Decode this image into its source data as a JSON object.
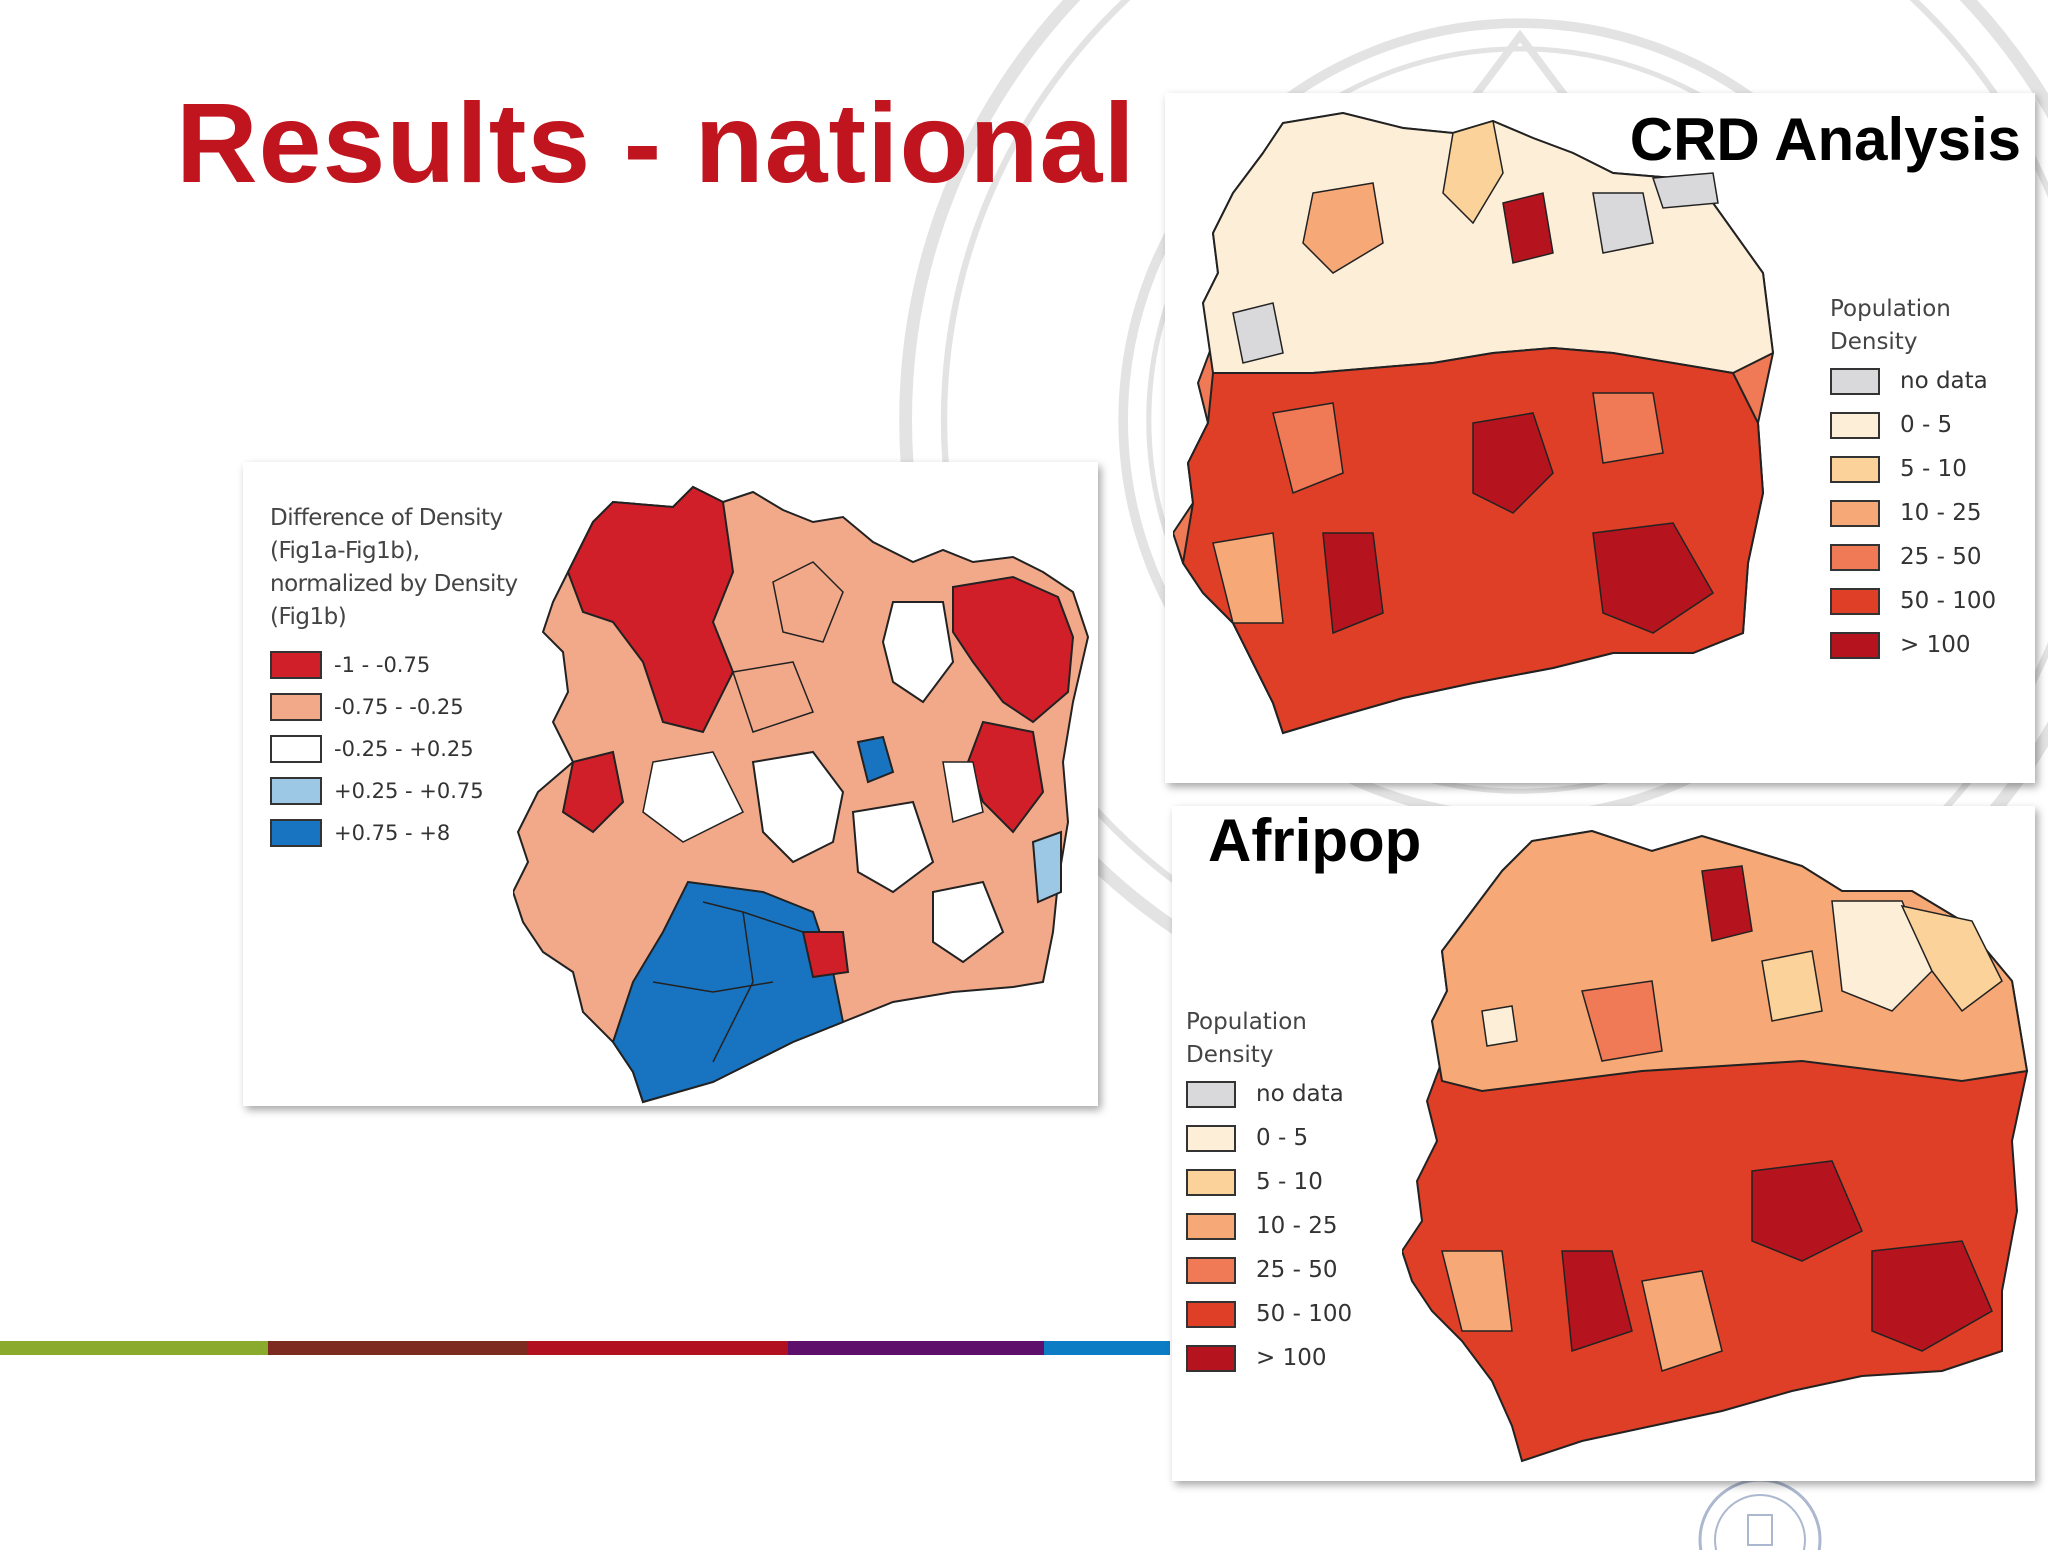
{
  "slide": {
    "title": "Results - national",
    "accent_bar_colors": [
      "#8aaa2d",
      "#7d2a20",
      "#b0101f",
      "#5e0e6b",
      "#0c7dc4"
    ]
  },
  "diff_map": {
    "legend_title": "Difference of Density (Fig1a-Fig1b), normalized by Density (Fig1b)",
    "legend": [
      {
        "label": "-1 - -0.75",
        "color": "#d11f2a"
      },
      {
        "label": "-0.75 - -0.25",
        "color": "#f2a98a"
      },
      {
        "label": "-0.25 - +0.25",
        "color": "#ffffff"
      },
      {
        "label": "+0.25 - +0.75",
        "color": "#9cc8e6"
      },
      {
        "label": "+0.75 - +8",
        "color": "#1874c1"
      }
    ]
  },
  "crd_map": {
    "title": "CRD Analysis",
    "legend_title": "Population Density",
    "legend": [
      {
        "label": "no data",
        "color": "#d9d9dc"
      },
      {
        "label": "0 - 5",
        "color": "#fdeed8"
      },
      {
        "label": "5 - 10",
        "color": "#fbd39a"
      },
      {
        "label": "10 - 25",
        "color": "#f7a877"
      },
      {
        "label": "25 - 50",
        "color": "#ef7a55"
      },
      {
        "label": "50 - 100",
        "color": "#de3f26"
      },
      {
        "label": "> 100",
        "color": "#b5141e"
      }
    ]
  },
  "afripop_map": {
    "title": "Afripop",
    "legend_title": "Population Density",
    "legend": [
      {
        "label": "no data",
        "color": "#d9d9dc"
      },
      {
        "label": "0 - 5",
        "color": "#fdeed8"
      },
      {
        "label": "5 - 10",
        "color": "#fbd39a"
      },
      {
        "label": "10 - 25",
        "color": "#f7a877"
      },
      {
        "label": "25 - 50",
        "color": "#ef7a55"
      },
      {
        "label": "50 - 100",
        "color": "#de3f26"
      },
      {
        "label": "> 100",
        "color": "#b5141e"
      }
    ]
  }
}
